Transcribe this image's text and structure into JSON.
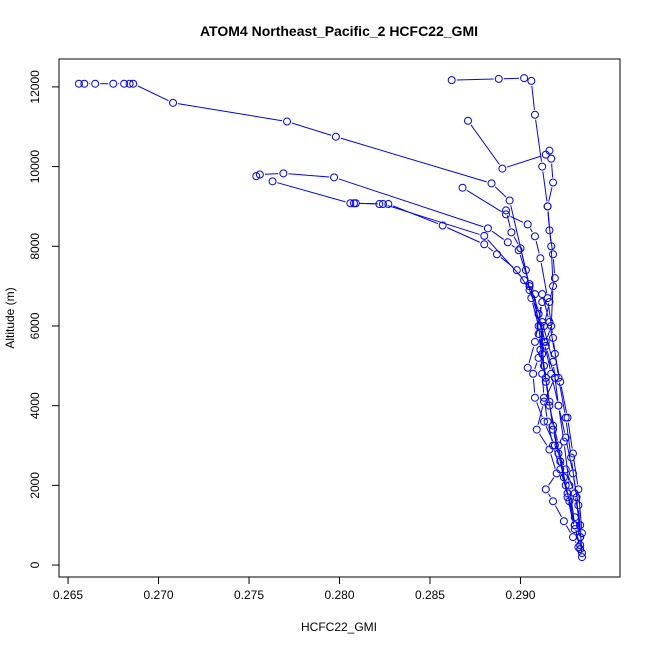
{
  "chart_data": {
    "type": "line",
    "title": "ATOM4 Northeast_Pacific_2 HCFC22_GMI",
    "xlabel": "HCFC22_GMI",
    "ylabel": "Altitude (m)",
    "xlim": [
      0.2645,
      0.2955
    ],
    "ylim": [
      -300,
      12700
    ],
    "x_ticks": [
      0.265,
      0.27,
      0.275,
      0.28,
      0.285,
      0.29
    ],
    "x_tick_labels": [
      "0.265",
      "0.270",
      "0.275",
      "0.280",
      "0.285",
      "0.290"
    ],
    "y_ticks": [
      0,
      2000,
      4000,
      6000,
      8000,
      10000,
      12000
    ],
    "y_tick_labels": [
      "0",
      "2000",
      "4000",
      "6000",
      "8000",
      "10000",
      "12000"
    ],
    "grid": false,
    "legend": "none",
    "series_color": "#0000ff",
    "marker": "open-circle",
    "series": [
      {
        "x": [
          0.2934,
          0.2933,
          0.293,
          0.2926,
          0.2922,
          0.2918,
          0.2915,
          0.2913,
          0.2912,
          0.2911,
          0.2913,
          0.2916,
          0.2919,
          0.2918,
          0.2916,
          0.2915,
          0.2918,
          0.2917,
          0.2916,
          0.2914,
          0.289,
          0.2871
        ],
        "y": [
          200,
          700,
          1200,
          1800,
          2400,
          3000,
          3600,
          4200,
          4800,
          5400,
          6000,
          6600,
          7200,
          7800,
          8400,
          9000,
          9600,
          10200,
          10400,
          10300,
          9950,
          11150
        ]
      },
      {
        "x": [
          0.2862,
          0.2888,
          0.2902,
          0.2906,
          0.2908,
          0.2912,
          0.2915,
          0.2917,
          0.2918,
          0.2917,
          0.2914,
          0.291,
          0.2907,
          0.2908,
          0.2913,
          0.2919,
          0.2925,
          0.293,
          0.2933
        ],
        "y": [
          12170,
          12200,
          12220,
          12150,
          11300,
          10000,
          9000,
          8000,
          7000,
          6000,
          5600,
          5200,
          4800,
          4200,
          3600,
          3000,
          2400,
          1800,
          1000
        ]
      },
      {
        "x": [
          0.2656,
          0.2659,
          0.2665,
          0.2675,
          0.2681,
          0.2684,
          0.2686,
          0.2708,
          0.2771,
          0.2798,
          0.2884,
          0.2894,
          0.2905,
          0.2911,
          0.2913,
          0.2916,
          0.2921,
          0.2925,
          0.293,
          0.2933
        ],
        "y": [
          12080,
          12080,
          12080,
          12080,
          12080,
          12080,
          12080,
          11600,
          11130,
          10750,
          9580,
          9150,
          7000,
          6000,
          5000,
          4000,
          3000,
          2000,
          1000,
          400
        ]
      },
      {
        "x": [
          0.2754,
          0.2756,
          0.2769,
          0.2797,
          0.2882,
          0.2893,
          0.2899,
          0.2905,
          0.2912,
          0.2918,
          0.2921,
          0.2924,
          0.2927,
          0.293
        ],
        "y": [
          9760,
          9800,
          9830,
          9730,
          8450,
          8100,
          7900,
          7050,
          6100,
          5100,
          4000,
          3100,
          2000,
          1000
        ]
      },
      {
        "x": [
          0.2763,
          0.2806,
          0.2808,
          0.2824,
          0.288,
          0.2902,
          0.2908,
          0.291,
          0.2914,
          0.2918,
          0.2922,
          0.2926,
          0.293,
          0.2933
        ],
        "y": [
          9630,
          9080,
          9080,
          9060,
          8260,
          7150,
          6800,
          5800,
          4600,
          3500,
          2600,
          1700,
          900,
          500
        ]
      },
      {
        "x": [
          0.2809,
          0.2822,
          0.2827,
          0.2857,
          0.288,
          0.2887,
          0.2898,
          0.2905,
          0.291,
          0.2913,
          0.2917,
          0.2921,
          0.2925,
          0.2929,
          0.2932,
          0.2934
        ],
        "y": [
          9080,
          9060,
          9060,
          8520,
          8050,
          7800,
          7400,
          6900,
          6300,
          5600,
          4800,
          4000,
          3200,
          2300,
          1500,
          300
        ]
      },
      {
        "x": [
          0.2868,
          0.2892,
          0.2904,
          0.2908,
          0.2911,
          0.2915,
          0.2918,
          0.2921,
          0.2925,
          0.2928,
          0.2931,
          0.2933
        ],
        "y": [
          9470,
          8800,
          8550,
          8250,
          7700,
          6700,
          5700,
          4700,
          3700,
          2700,
          1700,
          700
        ]
      },
      {
        "x": [
          0.2892,
          0.2895,
          0.29,
          0.2903,
          0.2906,
          0.291,
          0.2912,
          0.2914,
          0.2916,
          0.2918,
          0.2921,
          0.2924,
          0.2927,
          0.293,
          0.2933
        ],
        "y": [
          8900,
          8350,
          7950,
          7400,
          6700,
          6000,
          5300,
          4700,
          4100,
          3400,
          2800,
          2200,
          1600,
          1000,
          400
        ]
      },
      {
        "x": [
          0.2904,
          0.2908,
          0.2912,
          0.291,
          0.2914,
          0.2919,
          0.2913,
          0.2909,
          0.2916,
          0.292,
          0.2914,
          0.2918,
          0.2924,
          0.2929,
          0.2932
        ],
        "y": [
          4950,
          5600,
          6600,
          6300,
          5500,
          4700,
          4100,
          3400,
          2900,
          2300,
          1900,
          1600,
          1100,
          700,
          450
        ]
      },
      {
        "x": [
          0.2912,
          0.2916,
          0.2919,
          0.2922,
          0.2926,
          0.2929,
          0.2932,
          0.2934
        ],
        "y": [
          6800,
          6100,
          5300,
          4600,
          3700,
          2800,
          1900,
          800
        ]
      }
    ]
  }
}
